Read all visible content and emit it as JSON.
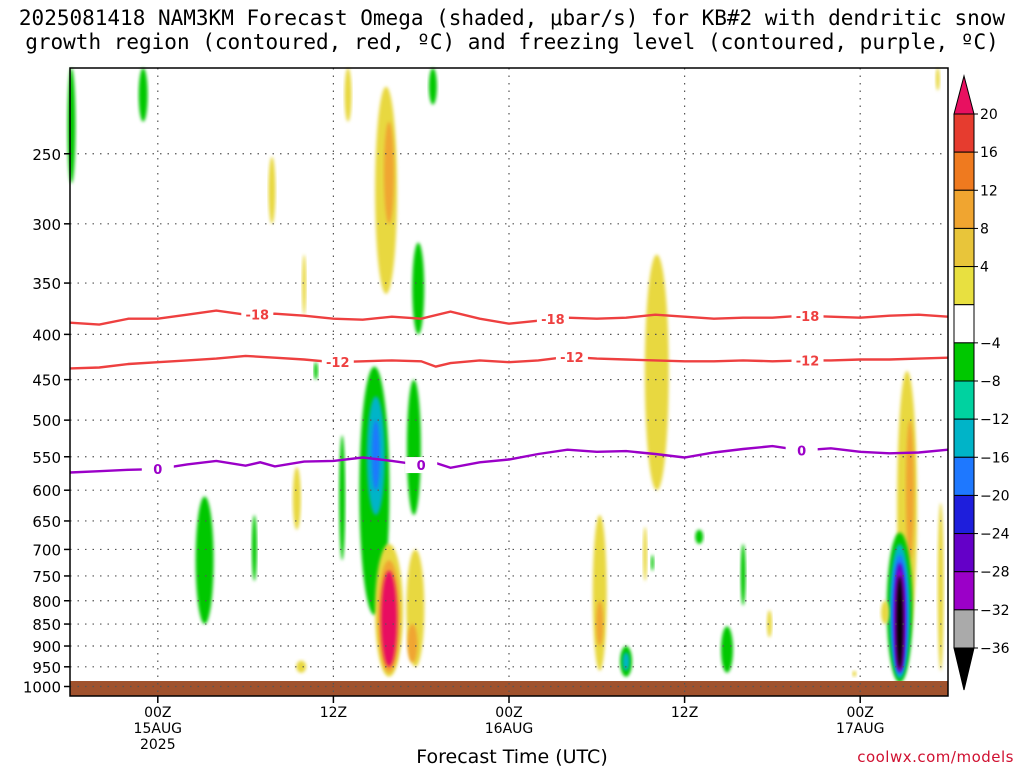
{
  "chart_data": {
    "type": "heatmap",
    "title_lines": [
      "2025081418 NAM3KM Forecast Omega (shaded, μbar/s) for KB#2 with dendritic snow",
      "growth region (contoured, red, ºC) and freezing level (contoured, purple, ºC)"
    ],
    "xlabel": "Forecast Time (UTC)",
    "y_ticks": [
      250,
      300,
      350,
      400,
      450,
      500,
      550,
      600,
      650,
      700,
      750,
      800,
      850,
      900,
      950,
      1000
    ],
    "ylim": [
      200,
      1025
    ],
    "x_ticks": [
      {
        "hour": 6,
        "label": "00Z",
        "sub": "15AUG",
        "sub2": "2025"
      },
      {
        "hour": 18,
        "label": "12Z",
        "sub": "",
        "sub2": ""
      },
      {
        "hour": 30,
        "label": "00Z",
        "sub": "16AUG",
        "sub2": ""
      },
      {
        "hour": 42,
        "label": "12Z",
        "sub": "",
        "sub2": ""
      },
      {
        "hour": 54,
        "label": "00Z",
        "sub": "17AUG",
        "sub2": ""
      }
    ],
    "xlim": [
      0,
      60
    ],
    "colorbar": {
      "labels": [
        "20",
        "16",
        "12",
        "8",
        "4",
        "−4",
        "−8",
        "−12",
        "−16",
        "−20",
        "−24",
        "−28",
        "−32",
        "−36"
      ],
      "colors": [
        "#e81060",
        "#e63c2f",
        "#ef7a1f",
        "#f0a530",
        "#e8c53a",
        "#e8e040",
        "#ffffff",
        "#00c800",
        "#00d2a0",
        "#00b4c8",
        "#1e78ff",
        "#1e1edc",
        "#6400c8",
        "#9b00c8",
        "#aaaaaa",
        "#000000"
      ]
    },
    "contours": [
      {
        "name": "-18",
        "color": "#ee4040",
        "points": [
          [
            0,
            388
          ],
          [
            2,
            390
          ],
          [
            4,
            384
          ],
          [
            6,
            384
          ],
          [
            8,
            380
          ],
          [
            10,
            376
          ],
          [
            12,
            380
          ],
          [
            14,
            379
          ],
          [
            16,
            381
          ],
          [
            18,
            384
          ],
          [
            20,
            385
          ],
          [
            22,
            382
          ],
          [
            24,
            384
          ],
          [
            26,
            377
          ],
          [
            28,
            384
          ],
          [
            30,
            389
          ],
          [
            32,
            386
          ],
          [
            34,
            383
          ],
          [
            36,
            384
          ],
          [
            38,
            383
          ],
          [
            40,
            380
          ],
          [
            42,
            382
          ],
          [
            44,
            384
          ],
          [
            46,
            383
          ],
          [
            48,
            383
          ],
          [
            50,
            381
          ],
          [
            52,
            382
          ],
          [
            54,
            383
          ],
          [
            56,
            381
          ],
          [
            58,
            380
          ],
          [
            60,
            382
          ]
        ],
        "label_hours": [
          12.8,
          33,
          50.4
        ]
      },
      {
        "name": "-12",
        "color": "#ee4040",
        "points": [
          [
            0,
            437
          ],
          [
            2,
            436
          ],
          [
            4,
            432
          ],
          [
            6,
            430
          ],
          [
            8,
            428
          ],
          [
            10,
            426
          ],
          [
            12,
            423
          ],
          [
            14,
            425
          ],
          [
            16,
            427
          ],
          [
            18,
            430
          ],
          [
            20,
            429
          ],
          [
            22,
            428
          ],
          [
            24,
            429
          ],
          [
            25,
            435
          ],
          [
            26,
            431
          ],
          [
            28,
            428
          ],
          [
            30,
            430
          ],
          [
            32,
            428
          ],
          [
            34,
            424
          ],
          [
            36,
            426
          ],
          [
            38,
            427
          ],
          [
            40,
            428
          ],
          [
            42,
            429
          ],
          [
            44,
            429
          ],
          [
            46,
            428
          ],
          [
            48,
            429
          ],
          [
            50,
            428
          ],
          [
            52,
            428
          ],
          [
            54,
            427
          ],
          [
            56,
            427
          ],
          [
            58,
            426
          ],
          [
            60,
            425
          ]
        ],
        "label_hours": [
          18.3,
          34.3,
          50.4
        ]
      },
      {
        "name": "0",
        "color": "#9b00c8",
        "points": [
          [
            0,
            573
          ],
          [
            2,
            571
          ],
          [
            4,
            569
          ],
          [
            6,
            568
          ],
          [
            8,
            561
          ],
          [
            10,
            556
          ],
          [
            12,
            563
          ],
          [
            13,
            558
          ],
          [
            14,
            564
          ],
          [
            16,
            557
          ],
          [
            18,
            556
          ],
          [
            20,
            551
          ],
          [
            22,
            556
          ],
          [
            24,
            562
          ],
          [
            25,
            559
          ],
          [
            26,
            566
          ],
          [
            28,
            558
          ],
          [
            30,
            554
          ],
          [
            32,
            546
          ],
          [
            34,
            540
          ],
          [
            36,
            543
          ],
          [
            38,
            542
          ],
          [
            40,
            546
          ],
          [
            42,
            551
          ],
          [
            44,
            544
          ],
          [
            46,
            539
          ],
          [
            48,
            535
          ],
          [
            50,
            541
          ],
          [
            52,
            538
          ],
          [
            54,
            543
          ],
          [
            56,
            545
          ],
          [
            58,
            544
          ],
          [
            60,
            540
          ]
        ],
        "label_hours": [
          6,
          24,
          50
        ]
      }
    ]
  }
}
